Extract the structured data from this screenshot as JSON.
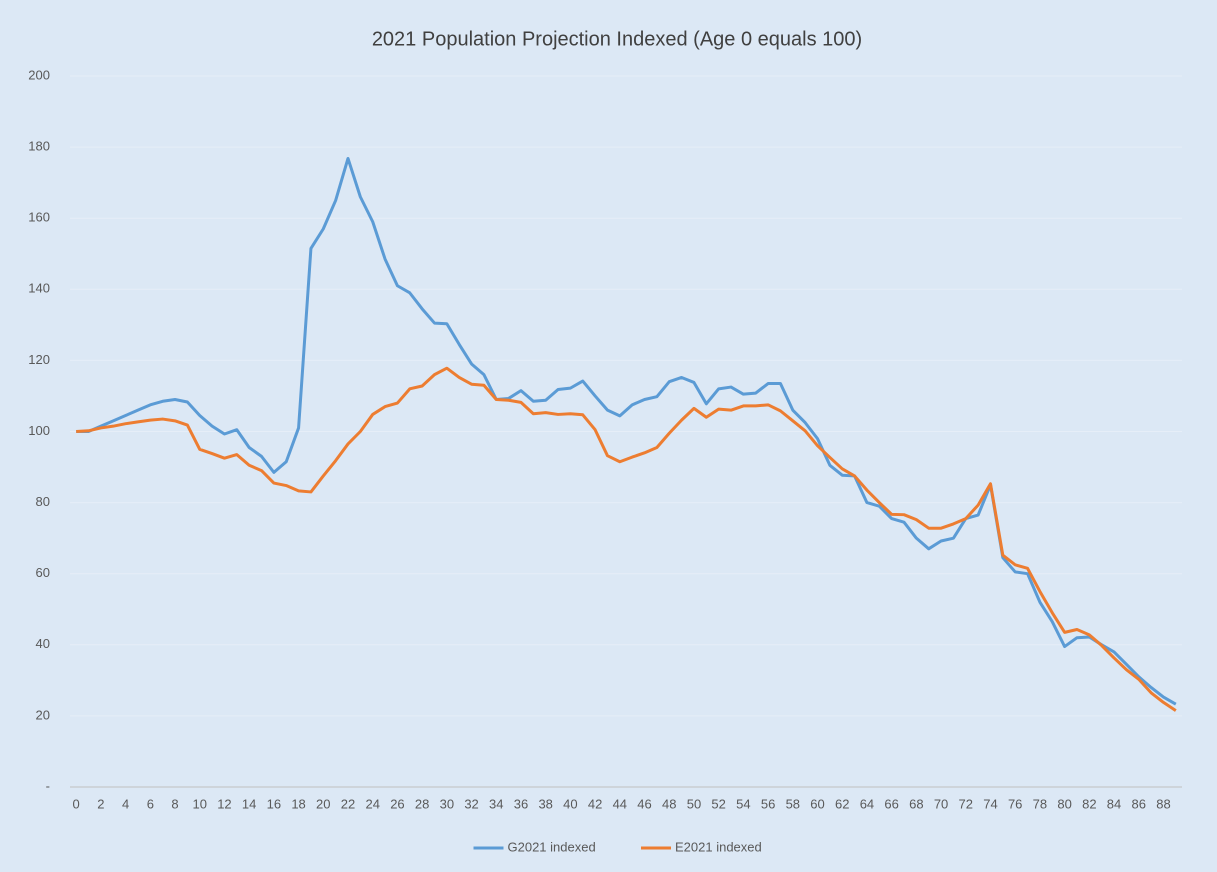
{
  "chart_data": {
    "type": "line",
    "title": "2021 Population Projection Indexed (Age 0 equals 100)",
    "categories": [
      "0",
      null,
      "2",
      null,
      "4",
      null,
      "6",
      null,
      "8",
      null,
      "10",
      null,
      "12",
      null,
      "14",
      null,
      "16",
      null,
      "18",
      null,
      "20",
      null,
      "22",
      null,
      "24",
      null,
      "26",
      null,
      "28",
      null,
      "30",
      null,
      "32",
      null,
      "34",
      null,
      "36",
      null,
      "38",
      null,
      "40",
      null,
      "42",
      null,
      "44",
      null,
      "46",
      null,
      "48",
      null,
      "50",
      null,
      "52",
      null,
      "54",
      null,
      "56",
      null,
      "58",
      null,
      "60",
      null,
      "62",
      null,
      "64",
      null,
      "66",
      null,
      "68",
      null,
      "70",
      null,
      "72",
      null,
      "74",
      null,
      "76",
      null,
      "78",
      null,
      "80",
      null,
      "82",
      null,
      "84",
      null,
      "86",
      null,
      "88",
      null
    ],
    "series": [
      {
        "name": "G2021 indexed",
        "color": "#5b9bd5",
        "values": [
          100,
          100,
          101.5,
          103,
          104.5,
          106,
          107.5,
          108.5,
          109,
          108.3,
          104.5,
          101.5,
          99.3,
          100.5,
          95.5,
          93,
          88.5,
          91.5,
          101,
          151.5,
          157,
          165,
          176.8,
          166,
          159,
          148.5,
          141,
          139,
          134.5,
          130.5,
          130.3,
          124.5,
          119,
          116,
          109,
          109.3,
          111.5,
          108.5,
          108.8,
          111.8,
          112.2,
          114.2,
          110,
          106,
          104.4,
          107.5,
          109,
          109.8,
          114,
          115.2,
          113.8,
          107.8,
          112,
          112.5,
          110.5,
          110.8,
          113.5,
          113.5,
          106,
          102.5,
          98,
          90.5,
          87.7,
          87.5,
          80,
          79,
          75.5,
          74.5,
          70,
          67,
          69.2,
          70,
          75.5,
          76.5,
          85,
          64.5,
          60.5,
          60,
          52,
          46.5,
          39.5,
          42,
          42.2,
          40,
          38,
          34.5,
          31,
          28,
          25.3,
          23.3
        ]
      },
      {
        "name": "E2021 indexed",
        "color": "#ed7d31",
        "values": [
          100,
          100.2,
          101,
          101.5,
          102.2,
          102.7,
          103.2,
          103.5,
          103,
          101.8,
          95,
          93.8,
          92.5,
          93.5,
          90.5,
          89,
          85.5,
          84.8,
          83.3,
          83,
          87.5,
          91.8,
          96.5,
          100,
          104.8,
          107,
          108,
          112,
          112.8,
          116,
          117.8,
          115.2,
          113.3,
          113,
          109,
          108.8,
          108.2,
          105,
          105.3,
          104.8,
          105,
          104.7,
          100.5,
          93.2,
          91.5,
          92.8,
          94,
          95.5,
          99.5,
          103.2,
          106.5,
          104,
          106.3,
          106,
          107.2,
          107.2,
          107.5,
          105.8,
          103,
          100.2,
          96,
          92.7,
          89.5,
          87.5,
          83.5,
          80,
          76.7,
          76.6,
          75.2,
          72.8,
          72.8,
          74,
          75.5,
          79.3,
          85.3,
          65.2,
          62.5,
          61.5,
          55,
          49,
          43.5,
          44.3,
          42.8,
          39.8,
          36.3,
          33,
          30.3,
          26.5,
          23.8,
          21.5
        ]
      }
    ],
    "ylim": [
      0,
      200
    ],
    "yticks": [
      {
        "value": 0,
        "label": "-"
      },
      20,
      40,
      60,
      80,
      100,
      120,
      140,
      160,
      180,
      200
    ],
    "grid": true,
    "legend": "bottom"
  }
}
